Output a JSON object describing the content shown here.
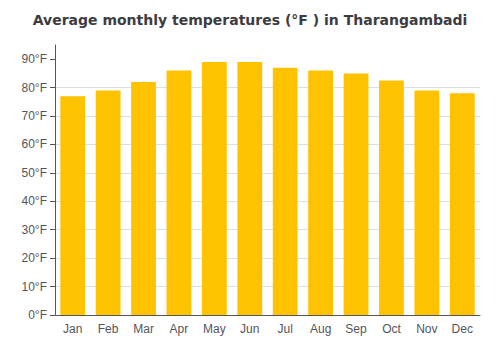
{
  "chart_data": {
    "type": "bar",
    "title": "Average monthly temperatures (°F ) in Tharangambadi",
    "categories": [
      "Jan",
      "Feb",
      "Mar",
      "Apr",
      "May",
      "Jun",
      "Jul",
      "Aug",
      "Sep",
      "Oct",
      "Nov",
      "Dec"
    ],
    "values": [
      77,
      79,
      82,
      86,
      89,
      89,
      87,
      86,
      85,
      82.5,
      79,
      78
    ],
    "color": "#FFC200",
    "ylim": [
      0,
      95
    ],
    "yticks": [
      {
        "value": 0,
        "label": "0°F"
      },
      {
        "value": 10,
        "label": "10°F"
      },
      {
        "value": 20,
        "label": "20°F"
      },
      {
        "value": 30,
        "label": "30°F"
      },
      {
        "value": 40,
        "label": "40°F"
      },
      {
        "value": 50,
        "label": "50°F"
      },
      {
        "value": 60,
        "label": "60°F"
      },
      {
        "value": 70,
        "label": "70°F"
      },
      {
        "value": 80,
        "label": "80°F"
      },
      {
        "value": 90,
        "label": "90°F"
      }
    ],
    "grid": true
  }
}
